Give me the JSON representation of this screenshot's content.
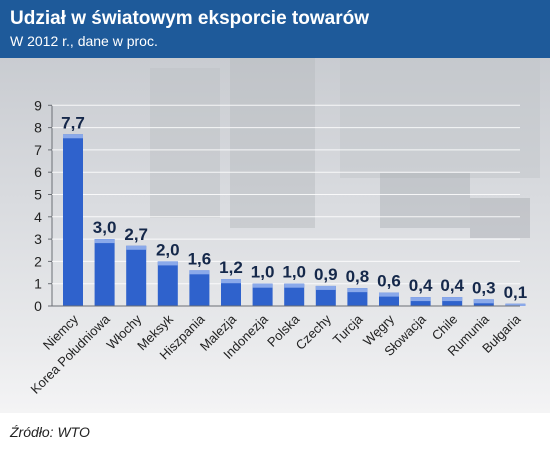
{
  "title": "Udział w światowym eksporcie towarów",
  "subtitle": "W 2012 r., dane w proc.",
  "source": "Źródło: WTO",
  "colors": {
    "header": "#1e5a9a",
    "bar": "#2f62cc",
    "bar_top": "#8aa9ea",
    "label": "#15284a"
  },
  "chart_data": {
    "type": "bar",
    "title": "Udział w światowym eksporcie towarów",
    "subtitle": "W 2012 r., dane w proc.",
    "categories": [
      "Niemcy",
      "Korea Południowa",
      "Włochy",
      "Meksyk",
      "Hiszpania",
      "Malezja",
      "Indonezja",
      "Polska",
      "Czechy",
      "Turcja",
      "Węgry",
      "Słowacja",
      "Chile",
      "Rumunia",
      "Bułgaria"
    ],
    "values": [
      7.7,
      3.0,
      2.7,
      2.0,
      1.6,
      1.2,
      1.0,
      1.0,
      0.9,
      0.8,
      0.6,
      0.4,
      0.4,
      0.3,
      0.1
    ],
    "value_labels": [
      "7,7",
      "3,0",
      "2,7",
      "2,0",
      "1,6",
      "1,2",
      "1,0",
      "1,0",
      "0,9",
      "0,8",
      "0,6",
      "0,4",
      "0,4",
      "0,3",
      "0,1"
    ],
    "ylim": [
      0,
      9
    ],
    "yticks": [
      "0",
      "1",
      "2",
      "3",
      "4",
      "5",
      "6",
      "7",
      "8",
      "9"
    ],
    "xlabel": "",
    "ylabel": "",
    "grid": true,
    "legend": "none"
  }
}
